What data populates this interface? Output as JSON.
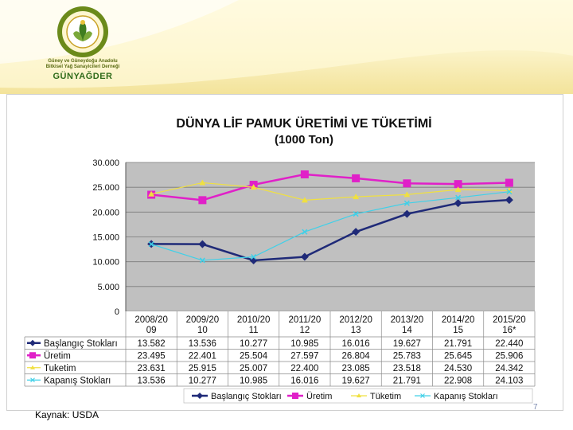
{
  "logo": {
    "ring_top": "GÜNEY VE GÜNEYDOĞU ANADOLU",
    "ring_bottom": "BİTKİSEL YAĞ SANAYİCİLERİ",
    "line1": "Güney ve Güneydoğu Anadolu",
    "line2": "Bitkisel Yağ Sanayicileri Derneği",
    "brand": "GÜNYAĞDER"
  },
  "colors": {
    "header": "#f3e39a",
    "plot_bg": "#c0c0c0"
  },
  "source": "Kaynak: USDA",
  "page_number": "7",
  "chart_data": {
    "type": "line",
    "title": "DÜNYA LİF PAMUK ÜRETİMİ VE TÜKETİMİ",
    "subtitle": "(1000 Ton)",
    "categories": [
      "2008/20 09",
      "2009/20 10",
      "2010/20 11",
      "2011/20 12",
      "2012/20 13",
      "2013/20 14",
      "2014/20 15",
      "2015/20 16*"
    ],
    "y_ticks": [
      "30.000",
      "25.000",
      "20.000",
      "15.000",
      "10.000",
      "5.000",
      "0"
    ],
    "ylim": [
      0,
      30000
    ],
    "grid": "horizontal",
    "legend_position": "bottom",
    "series": [
      {
        "name": "Başlangıç Stokları",
        "color": "#1f2a78",
        "marker": "diamond",
        "values": [
          13582,
          13536,
          10277,
          10985,
          16016,
          19627,
          21791,
          22440
        ],
        "labels": [
          "13.582",
          "13.536",
          "10.277",
          "10.985",
          "16.016",
          "19.627",
          "21.791",
          "22.440"
        ]
      },
      {
        "name": "Üretim",
        "color": "#e020c8",
        "marker": "square",
        "values": [
          23495,
          22401,
          25504,
          27597,
          26804,
          25783,
          25645,
          25906
        ],
        "labels": [
          "23.495",
          "22.401",
          "25.504",
          "27.597",
          "26.804",
          "25.783",
          "25.645",
          "25.906"
        ]
      },
      {
        "name": "Tuketim",
        "color": "#f0e040",
        "marker": "triangle",
        "values": [
          23631,
          25915,
          25007,
          22400,
          23085,
          23518,
          24530,
          24342
        ],
        "labels": [
          "23.631",
          "25.915",
          "25.007",
          "22.400",
          "23.085",
          "23.518",
          "24.530",
          "24.342"
        ]
      },
      {
        "name": "Kapanış Stokları",
        "color": "#40d0e8",
        "marker": "x",
        "values": [
          13536,
          10277,
          10985,
          16016,
          19627,
          21791,
          22908,
          24103
        ],
        "labels": [
          "13.536",
          "10.277",
          "10.985",
          "16.016",
          "19.627",
          "21.791",
          "22.908",
          "24.103"
        ]
      }
    ],
    "legend_labels": [
      "Başlangıç Stokları",
      "Üretim",
      "Tüketim",
      "Kapanış Stokları"
    ]
  }
}
